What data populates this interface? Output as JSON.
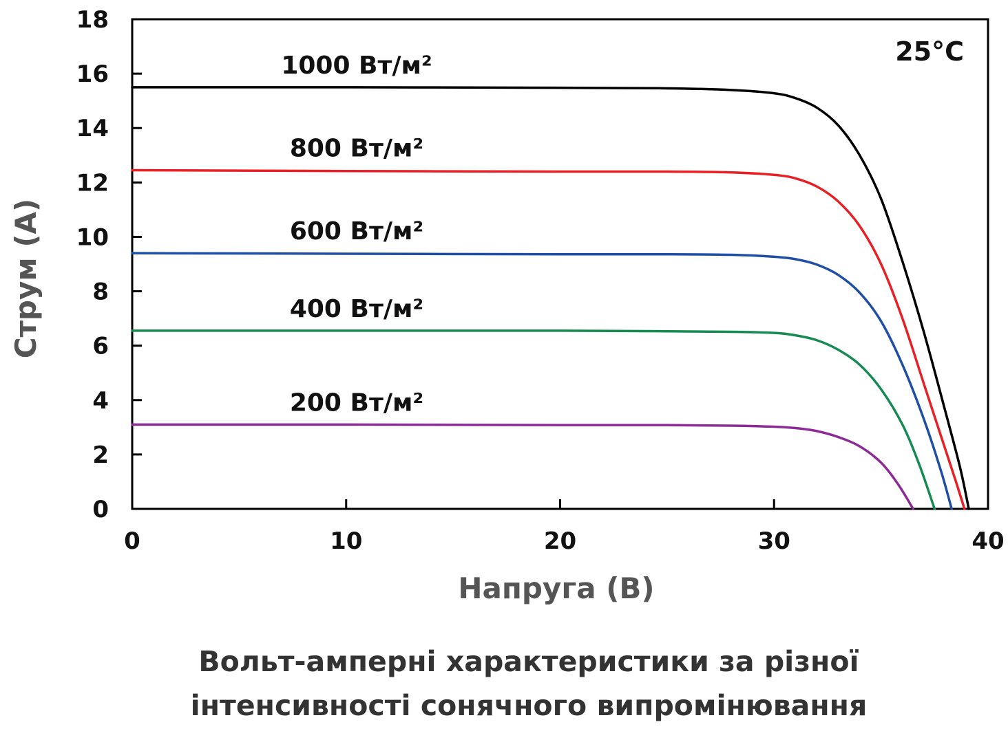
{
  "chart_data": {
    "type": "line",
    "title": "",
    "xlabel": "Напруга (В)",
    "ylabel": "Струм (А)",
    "xlim": [
      0,
      40
    ],
    "ylim": [
      0,
      18
    ],
    "x_ticks": [
      0,
      10,
      20,
      30,
      40
    ],
    "y_ticks": [
      0,
      2,
      4,
      6,
      8,
      10,
      12,
      14,
      16,
      18
    ],
    "grid": false,
    "annotation": "25°C",
    "caption_lines": [
      "Вольт-амперні характеристики за різної",
      "інтенсивності сонячного випромінювання"
    ],
    "series": [
      {
        "name": "1000 Вт/м²",
        "color": "#000000",
        "points": [
          [
            0,
            15.5
          ],
          [
            10,
            15.5
          ],
          [
            20,
            15.48
          ],
          [
            25,
            15.46
          ],
          [
            28,
            15.4
          ],
          [
            30,
            15.28
          ],
          [
            31,
            15.1
          ],
          [
            32,
            14.75
          ],
          [
            33,
            14.1
          ],
          [
            34,
            13.0
          ],
          [
            35,
            11.4
          ],
          [
            36,
            9.1
          ],
          [
            37,
            6.5
          ],
          [
            38,
            3.6
          ],
          [
            38.7,
            1.5
          ],
          [
            39.1,
            0
          ]
        ]
      },
      {
        "name": "800 Вт/м²",
        "color": "#e82025",
        "points": [
          [
            0,
            12.45
          ],
          [
            10,
            12.42
          ],
          [
            20,
            12.4
          ],
          [
            25,
            12.4
          ],
          [
            28,
            12.37
          ],
          [
            30,
            12.28
          ],
          [
            31,
            12.15
          ],
          [
            32,
            11.85
          ],
          [
            33,
            11.3
          ],
          [
            34,
            10.4
          ],
          [
            35,
            9.0
          ],
          [
            36,
            7.0
          ],
          [
            37,
            4.6
          ],
          [
            38,
            2.2
          ],
          [
            38.5,
            1.0
          ],
          [
            38.9,
            0
          ]
        ]
      },
      {
        "name": "600 Вт/м²",
        "color": "#1f4ea5",
        "points": [
          [
            0,
            9.4
          ],
          [
            10,
            9.38
          ],
          [
            20,
            9.36
          ],
          [
            25,
            9.36
          ],
          [
            28,
            9.34
          ],
          [
            30,
            9.27
          ],
          [
            31,
            9.18
          ],
          [
            32,
            8.98
          ],
          [
            33,
            8.6
          ],
          [
            34,
            7.95
          ],
          [
            35,
            6.9
          ],
          [
            36,
            5.3
          ],
          [
            37,
            3.3
          ],
          [
            37.8,
            1.4
          ],
          [
            38.3,
            0
          ]
        ]
      },
      {
        "name": "400 Вт/м²",
        "color": "#178a52",
        "points": [
          [
            0,
            6.55
          ],
          [
            10,
            6.55
          ],
          [
            20,
            6.55
          ],
          [
            25,
            6.53
          ],
          [
            28,
            6.51
          ],
          [
            30,
            6.47
          ],
          [
            31,
            6.38
          ],
          [
            32,
            6.2
          ],
          [
            33,
            5.85
          ],
          [
            34,
            5.3
          ],
          [
            35,
            4.4
          ],
          [
            36,
            3.1
          ],
          [
            36.8,
            1.6
          ],
          [
            37.5,
            0
          ]
        ]
      },
      {
        "name": "200 Вт/м²",
        "color": "#8c2a98",
        "points": [
          [
            0,
            3.1
          ],
          [
            10,
            3.1
          ],
          [
            20,
            3.08
          ],
          [
            25,
            3.08
          ],
          [
            28,
            3.06
          ],
          [
            30,
            3.02
          ],
          [
            31,
            2.97
          ],
          [
            32,
            2.86
          ],
          [
            33,
            2.64
          ],
          [
            34,
            2.3
          ],
          [
            35,
            1.7
          ],
          [
            35.8,
            0.9
          ],
          [
            36.5,
            0
          ]
        ]
      }
    ]
  }
}
